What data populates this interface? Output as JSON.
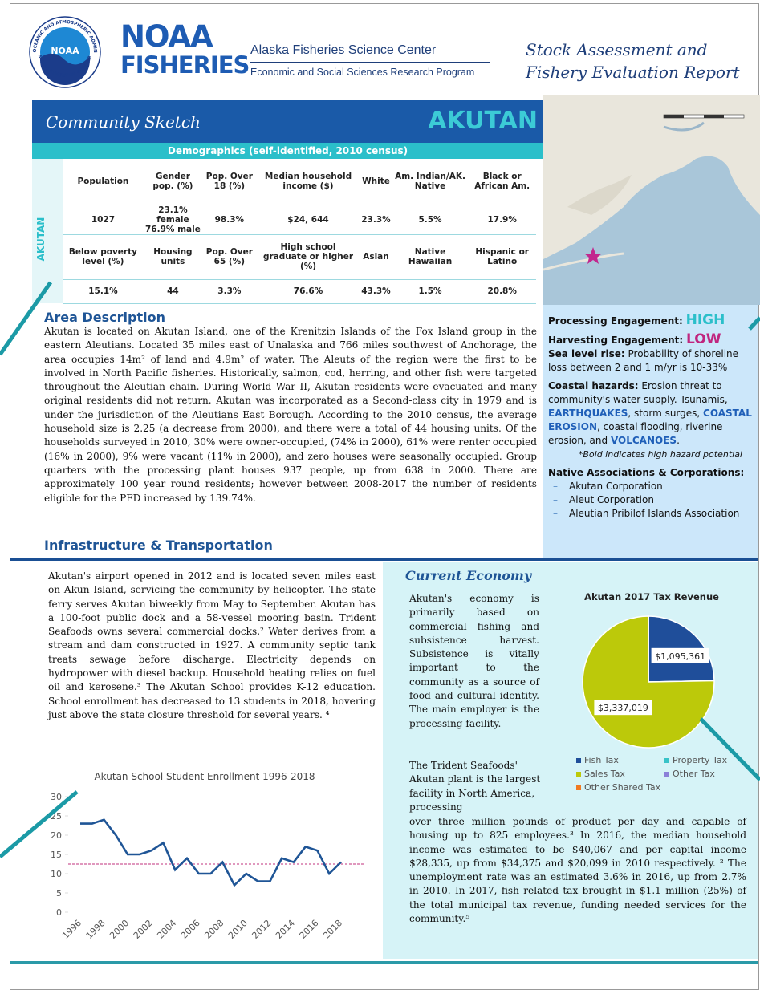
{
  "header": {
    "seal_ring_top": "NATIONAL OCEANIC AND ATMOSPHERIC ADMINISTRATION",
    "seal_ring_bottom": "U.S. DEPARTMENT OF COMMERCE",
    "seal_center": "NOAA",
    "logo_line1": "NOAA",
    "logo_line2": "FISHERIES",
    "center_name": "Alaska Fisheries Science Center",
    "program": "Economic and Social Sciences Research Program",
    "report_line1": "Stock Assessment and",
    "report_line2": "Fishery Evaluation Report"
  },
  "banner": {
    "title": "Community Sketch",
    "community": "AKUTAN"
  },
  "demographics": {
    "title": "Demographics  (self-identified, 2010 census)",
    "side_label": "AKUTAN",
    "rows": [
      [
        "Population",
        "Gender pop. (%)",
        "Pop. Over 18 (%)",
        "Median household income ($)",
        "White",
        "Am. Indian/AK. Native",
        "Black or African Am."
      ],
      [
        "1027",
        "23.1% female\n76.9% male",
        "98.3%",
        "$24, 644",
        "23.3%",
        "5.5%",
        "17.9%"
      ],
      [
        "Below poverty level (%)",
        "Housing units",
        "Pop. Over 65 (%)",
        "High school graduate or higher (%)",
        "Asian",
        "Native Hawaiian",
        "Hispanic or Latino"
      ],
      [
        "15.1%",
        "44",
        "3.3%",
        "76.6%",
        "43.3%",
        "1.5%",
        "20.8%"
      ]
    ]
  },
  "area": {
    "heading": "Area Description",
    "text": "Akutan is located on Akutan Island, one of the Krenitzin Islands of the Fox Island group in the eastern Aleutians. Located 35 miles east of Unalaska and 766 miles southwest of Anchorage, the area occupies 14m² of land and 4.9m² of water. The Aleuts of the region were the first to be involved in North Pacific fisheries. Historically, salmon, cod, herring, and other fish were targeted throughout the Aleutian chain. During World War II, Akutan residents were evacuated and many original residents did not return. Akutan was incorporated as a Second-class city in 1979 and is under the jurisdiction of the Aleutians East Borough. According to the 2010 census, the average household size is 2.25 (a decrease from 2000), and there were a total of 44 housing units. Of the households surveyed in 2010, 30% were owner-occupied, (74% in 2000), 61% were renter occupied (16% in 2000), 9% were vacant (11% in 2000), and zero houses were seasonally occupied. Group quarters with the processing plant houses 937 people, up from 638 in 2000. There are approximately 100 year round residents; however between 2008-2017 the number of residents eligible for the PFD increased by 139.74%."
  },
  "side": {
    "processing_label": "Processing Engagement:",
    "processing_value": "HIGH",
    "harvesting_label": "Harvesting Engagement:",
    "harvesting_value": "LOW",
    "sea_label": "Sea level rise:",
    "sea_text": "Probability of shoreline loss between 2 and 1 m/yr is 10-33%",
    "hazards_label": "Coastal hazards:",
    "hazards": [
      {
        "text": "Erosion threat to community's water supply. Tsunamis, ",
        "high": false
      },
      {
        "text": "EARTHQUAKES",
        "high": true
      },
      {
        "text": ",  storm surges, ",
        "high": false
      },
      {
        "text": "COASTAL EROSION",
        "high": true
      },
      {
        "text": ",  coastal flooding, riverine erosion, and ",
        "high": false
      },
      {
        "text": "VOLCANOES",
        "high": true
      },
      {
        "text": ".",
        "high": false
      }
    ],
    "hazards_note": "*Bold indicates high hazard potential",
    "assoc_label": "Native Associations  & Corporations:",
    "assoc": [
      "Akutan Corporation",
      "Aleut Corporation",
      "Aleutian Pribilof Islands Association"
    ]
  },
  "infrastructure": {
    "heading": "Infrastructure & Transportation",
    "text": "Akutan's airport opened in 2012 and is located seven miles east on Akun Island, servicing the community by helicopter. The state ferry serves Akutan biweekly from May to September. Akutan has a 100-foot public dock and a 58-vessel mooring basin. Trident Seafoods owns several commercial docks.² Water derives from a stream and dam constructed in 1927. A community septic tank treats sewage before discharge. Electricity depends on hydropower with diesel backup. Household heating relies on fuel oil and kerosene.³ The Akutan School provides K-12 education. School enrollment has decreased to 13 students in 2018, hovering just above the state closure threshold for several years. ⁴"
  },
  "enrollment_chart": {
    "type": "line",
    "title": "Akutan School Student Enrollment 1996-2018",
    "categories": [
      "1996",
      null,
      "1998",
      null,
      "2000",
      null,
      "2002",
      null,
      "2004",
      null,
      "2006",
      null,
      "2008",
      null,
      "2010",
      null,
      "2012",
      null,
      "2014",
      null,
      "2016",
      null,
      "2018"
    ],
    "values": [
      23,
      23,
      24,
      20,
      15,
      15,
      16,
      18,
      11,
      14,
      10,
      10,
      13,
      7,
      10,
      8,
      8,
      14,
      13,
      17,
      16,
      10,
      13
    ],
    "color": "#1f5596",
    "ylim": [
      0,
      30
    ],
    "yticks": [
      0,
      5,
      10,
      15,
      20,
      25,
      30
    ],
    "reference_line": {
      "value": 12.5,
      "color": "#c2307c"
    }
  },
  "economy": {
    "heading": "Current Economy",
    "text1": "Akutan's economy is primarily based on commercial fishing and subsistence harvest. Subsistence is vitally important to the community as a source of food and cultural identity. The main employer is the processing facility.",
    "text2": "The Trident Seafoods' Akutan plant is the largest facility in North America, processing",
    "text3": "over three million pounds of product per day and capable of housing up to 825 employees.³ In 2016, the median household income was estimated to be $40,067 and per capital income $28,335, up from $34,375 and  $20,099 in 2010 respectively. ² The unemployment rate was an estimated 3.6% in 2016, up from 2.7% in 2010. In 2017, fish related tax brought in $1.1 million (25%) of the total municipal tax revenue,  funding needed services for the community.⁵"
  },
  "tax_chart": {
    "type": "pie",
    "title": "Akutan 2017 Tax Revenue",
    "categories": [
      "Fish Tax",
      "Property Tax",
      "Sales Tax",
      "Other Tax",
      "Other Shared Tax"
    ],
    "values": [
      1095361,
      0,
      3337019,
      0,
      0
    ],
    "value_labels": [
      "$1,095,361",
      null,
      "$3,337,019",
      null,
      null
    ],
    "colors": [
      "#1f4e9a",
      "#38c3c8",
      "#bcc90a",
      "#8b80d8",
      "#f07a22"
    ]
  }
}
